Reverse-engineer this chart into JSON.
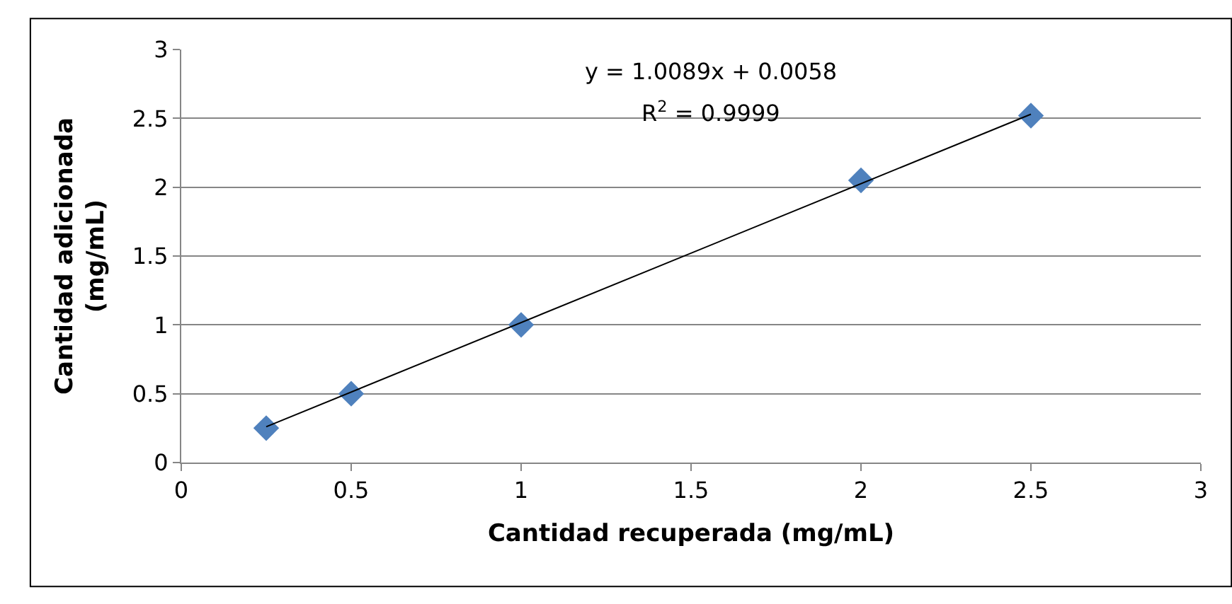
{
  "chart_data": {
    "type": "scatter",
    "xlabel": "Cantidad recuperada (mg/mL)",
    "ylabel": "Cantidad adicionada\n(mg/mL)",
    "annotations": [
      "y = 1.0089x + 0.0058",
      "R$^{2}$ = 0.9999"
    ],
    "series": [
      {
        "color": "#4f81bd",
        "marker": "diamond",
        "x": [
          0.25,
          0.5,
          1,
          2,
          2.5
        ],
        "values": [
          0.25,
          0.5,
          1,
          2.05,
          2.52
        ]
      },
      {
        "type": "line",
        "color": "#000000",
        "marker": "none",
        "line_style": "solid",
        "x": [
          0.25,
          2.5
        ],
        "values": [
          0.26,
          2.53
        ]
      }
    ],
    "xlim": [
      0,
      3
    ],
    "xticks": [
      0,
      0.5,
      1,
      1.5,
      2,
      2.5,
      3
    ],
    "ylim": [
      0,
      3
    ],
    "yticks": [
      0,
      0.5,
      1,
      1.5,
      2,
      2.5,
      3
    ],
    "grid": "y",
    "legend": false
  }
}
